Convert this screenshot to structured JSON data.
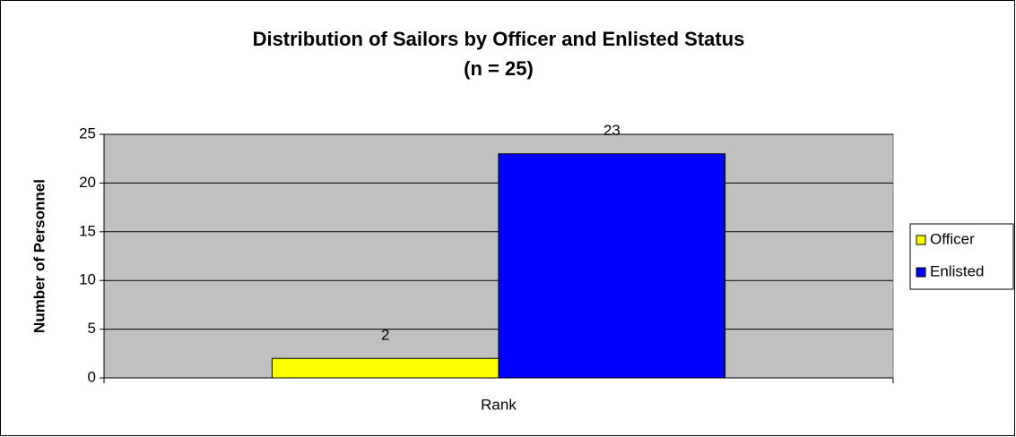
{
  "chart_data": {
    "type": "bar",
    "title": "Distribution of Sailors by Officer and Enlisted Status",
    "subtitle": "(n = 25)",
    "ylabel": "Number of Personnel",
    "categories": [
      "Rank"
    ],
    "series": [
      {
        "name": "Officer",
        "color": "#ffff00",
        "values": [
          2
        ]
      },
      {
        "name": "Enlisted",
        "color": "#0000ff",
        "values": [
          23
        ]
      }
    ],
    "ylim": [
      0,
      25
    ],
    "yticks": [
      0,
      5,
      10,
      15,
      20,
      25
    ],
    "grid": true,
    "legend": "right"
  }
}
